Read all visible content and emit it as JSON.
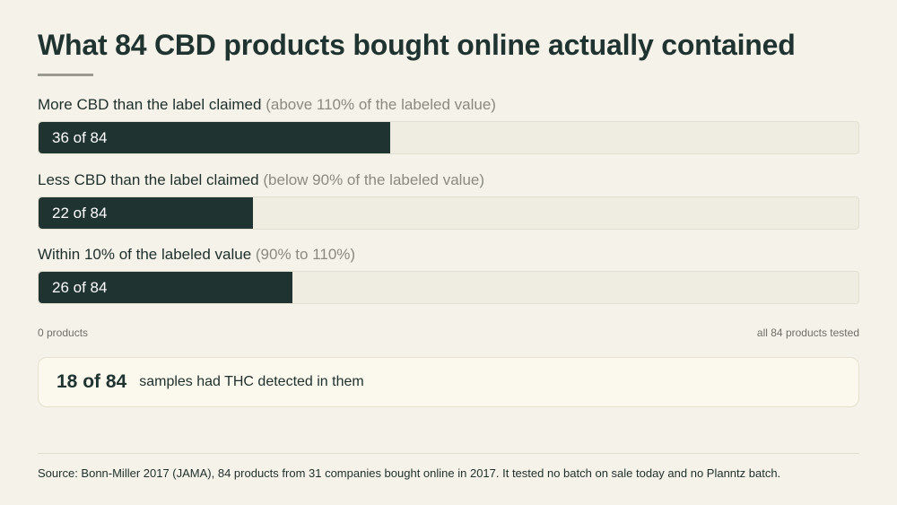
{
  "title": "What 84 CBD products bought online actually contained",
  "chart_data": {
    "type": "bar",
    "orientation": "horizontal",
    "total": 84,
    "xlim": [
      0,
      84
    ],
    "categories": [
      {
        "label": "More CBD than the label claimed",
        "qualifier": "(above 110% of the labeled value)",
        "value": 36,
        "value_label": "36 of 84"
      },
      {
        "label": "Less CBD than the label claimed",
        "qualifier": "(below 90% of the labeled value)",
        "value": 22,
        "value_label": "22 of 84"
      },
      {
        "label": "Within 10% of the labeled value",
        "qualifier": "(90% to 110%)",
        "value": 26,
        "value_label": "26 of 84"
      }
    ],
    "axis_min_label": "0 products",
    "axis_max_label": "all 84 products tested",
    "bar_color": "#1f3330",
    "track_color": "#efece1"
  },
  "callout": {
    "value": "18 of 84",
    "text": "samples had THC detected in them"
  },
  "source": "Source: Bonn-Miller 2017 (JAMA), 84 products from 31 companies bought online in 2017. It tested no batch on sale today and no Planntz batch."
}
